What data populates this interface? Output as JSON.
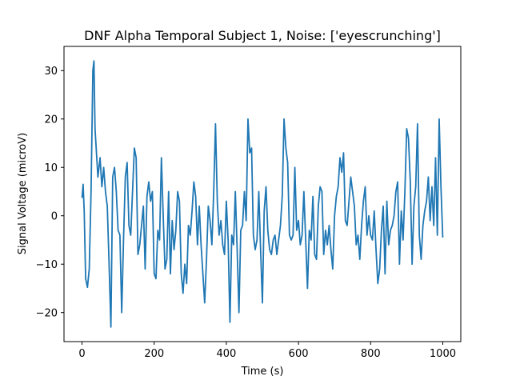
{
  "chart_data": {
    "type": "line",
    "title": "DNF Alpha Temporal Subject 1, Noise: ['eyescrunching']",
    "xlabel": "Time (s)",
    "ylabel": "Signal Voltage (microV)",
    "xlim": [
      -50,
      1050
    ],
    "ylim": [
      -26,
      35
    ],
    "xticks": [
      0,
      200,
      400,
      600,
      800,
      1000
    ],
    "yticks": [
      -20,
      -10,
      0,
      10,
      20,
      30
    ],
    "grid": false,
    "series": [
      {
        "color": "#1f77b4",
        "points": [
          [
            0,
            3.7
          ],
          [
            3,
            6.5
          ],
          [
            6,
            1
          ],
          [
            10,
            -13
          ],
          [
            15,
            -14.8
          ],
          [
            20,
            -11
          ],
          [
            25,
            5
          ],
          [
            30,
            30
          ],
          [
            33,
            32
          ],
          [
            36,
            18
          ],
          [
            40,
            13
          ],
          [
            44,
            8
          ],
          [
            50,
            12
          ],
          [
            55,
            6
          ],
          [
            60,
            10
          ],
          [
            65,
            5
          ],
          [
            70,
            2
          ],
          [
            75,
            -10
          ],
          [
            80,
            -23
          ],
          [
            85,
            8
          ],
          [
            90,
            10
          ],
          [
            95,
            5
          ],
          [
            100,
            -3
          ],
          [
            105,
            -4
          ],
          [
            110,
            -20
          ],
          [
            115,
            -5
          ],
          [
            120,
            8
          ],
          [
            125,
            11
          ],
          [
            130,
            -2
          ],
          [
            135,
            -4
          ],
          [
            140,
            5
          ],
          [
            145,
            14
          ],
          [
            150,
            12
          ],
          [
            155,
            -8
          ],
          [
            160,
            -6
          ],
          [
            165,
            -2
          ],
          [
            170,
            2
          ],
          [
            175,
            -11
          ],
          [
            180,
            4
          ],
          [
            185,
            7
          ],
          [
            190,
            3
          ],
          [
            195,
            5
          ],
          [
            200,
            -12
          ],
          [
            205,
            -13
          ],
          [
            210,
            -3
          ],
          [
            215,
            -5
          ],
          [
            220,
            12
          ],
          [
            225,
            0
          ],
          [
            230,
            -11
          ],
          [
            235,
            -9
          ],
          [
            240,
            5
          ],
          [
            245,
            -12
          ],
          [
            250,
            -1
          ],
          [
            255,
            -7
          ],
          [
            260,
            -3
          ],
          [
            265,
            5
          ],
          [
            270,
            3
          ],
          [
            275,
            -12
          ],
          [
            280,
            -16
          ],
          [
            285,
            -10
          ],
          [
            290,
            -14
          ],
          [
            295,
            -2
          ],
          [
            300,
            -4
          ],
          [
            305,
            1
          ],
          [
            310,
            7
          ],
          [
            315,
            4
          ],
          [
            320,
            -6
          ],
          [
            325,
            2
          ],
          [
            330,
            -6
          ],
          [
            335,
            -12
          ],
          [
            340,
            -18
          ],
          [
            345,
            -9
          ],
          [
            350,
            2
          ],
          [
            355,
            -1
          ],
          [
            360,
            -6
          ],
          [
            365,
            5
          ],
          [
            370,
            19
          ],
          [
            375,
            3
          ],
          [
            380,
            -4
          ],
          [
            385,
            -1
          ],
          [
            390,
            -6
          ],
          [
            395,
            -8
          ],
          [
            400,
            3
          ],
          [
            405,
            -5
          ],
          [
            410,
            -22
          ],
          [
            415,
            -4
          ],
          [
            420,
            -6
          ],
          [
            425,
            5
          ],
          [
            430,
            -7
          ],
          [
            435,
            -20
          ],
          [
            440,
            -3
          ],
          [
            445,
            -2
          ],
          [
            450,
            5
          ],
          [
            455,
            -1
          ],
          [
            460,
            20
          ],
          [
            465,
            13
          ],
          [
            470,
            14
          ],
          [
            475,
            -4
          ],
          [
            480,
            -7
          ],
          [
            485,
            -5
          ],
          [
            490,
            5
          ],
          [
            495,
            -7
          ],
          [
            500,
            -18
          ],
          [
            505,
            1
          ],
          [
            510,
            6
          ],
          [
            515,
            -3
          ],
          [
            520,
            -7
          ],
          [
            525,
            -8
          ],
          [
            530,
            -5
          ],
          [
            535,
            -4
          ],
          [
            540,
            -8
          ],
          [
            545,
            -5
          ],
          [
            550,
            -2
          ],
          [
            555,
            4
          ],
          [
            560,
            20
          ],
          [
            565,
            14
          ],
          [
            570,
            11
          ],
          [
            575,
            -4
          ],
          [
            580,
            -5
          ],
          [
            585,
            -4
          ],
          [
            590,
            10
          ],
          [
            595,
            -3
          ],
          [
            600,
            -1
          ],
          [
            605,
            -6
          ],
          [
            610,
            -4
          ],
          [
            615,
            5
          ],
          [
            620,
            -5
          ],
          [
            625,
            -15
          ],
          [
            630,
            -3
          ],
          [
            635,
            -5
          ],
          [
            640,
            4
          ],
          [
            645,
            -8
          ],
          [
            650,
            -9
          ],
          [
            655,
            2
          ],
          [
            660,
            6
          ],
          [
            665,
            5
          ],
          [
            670,
            -8
          ],
          [
            675,
            -3
          ],
          [
            680,
            -6
          ],
          [
            685,
            -2
          ],
          [
            690,
            -7
          ],
          [
            695,
            -11
          ],
          [
            700,
            0
          ],
          [
            705,
            4
          ],
          [
            710,
            6
          ],
          [
            715,
            12
          ],
          [
            720,
            9
          ],
          [
            725,
            13
          ],
          [
            730,
            -1
          ],
          [
            735,
            -2
          ],
          [
            740,
            3
          ],
          [
            745,
            8
          ],
          [
            750,
            5
          ],
          [
            755,
            2
          ],
          [
            760,
            -6
          ],
          [
            765,
            -4
          ],
          [
            770,
            -9
          ],
          [
            775,
            -2
          ],
          [
            780,
            3
          ],
          [
            785,
            6
          ],
          [
            790,
            -4
          ],
          [
            795,
            0
          ],
          [
            800,
            -4
          ],
          [
            805,
            -5
          ],
          [
            810,
            1
          ],
          [
            815,
            -7
          ],
          [
            820,
            -14
          ],
          [
            825,
            -11
          ],
          [
            830,
            -3
          ],
          [
            835,
            2
          ],
          [
            840,
            -12
          ],
          [
            845,
            3
          ],
          [
            850,
            -6
          ],
          [
            855,
            -3
          ],
          [
            860,
            -2
          ],
          [
            865,
            0
          ],
          [
            870,
            5
          ],
          [
            875,
            7
          ],
          [
            880,
            -10
          ],
          [
            885,
            1
          ],
          [
            890,
            -5
          ],
          [
            895,
            5
          ],
          [
            900,
            18
          ],
          [
            905,
            16
          ],
          [
            910,
            7
          ],
          [
            915,
            -10
          ],
          [
            920,
            2
          ],
          [
            925,
            6
          ],
          [
            930,
            19
          ],
          [
            935,
            -4
          ],
          [
            940,
            -9
          ],
          [
            945,
            -2
          ],
          [
            950,
            1
          ],
          [
            955,
            3
          ],
          [
            960,
            8
          ],
          [
            965,
            -1
          ],
          [
            970,
            6
          ],
          [
            975,
            -2
          ],
          [
            980,
            12
          ],
          [
            985,
            -4
          ],
          [
            990,
            20
          ],
          [
            995,
            6
          ],
          [
            1000,
            -4.5
          ]
        ]
      }
    ]
  }
}
